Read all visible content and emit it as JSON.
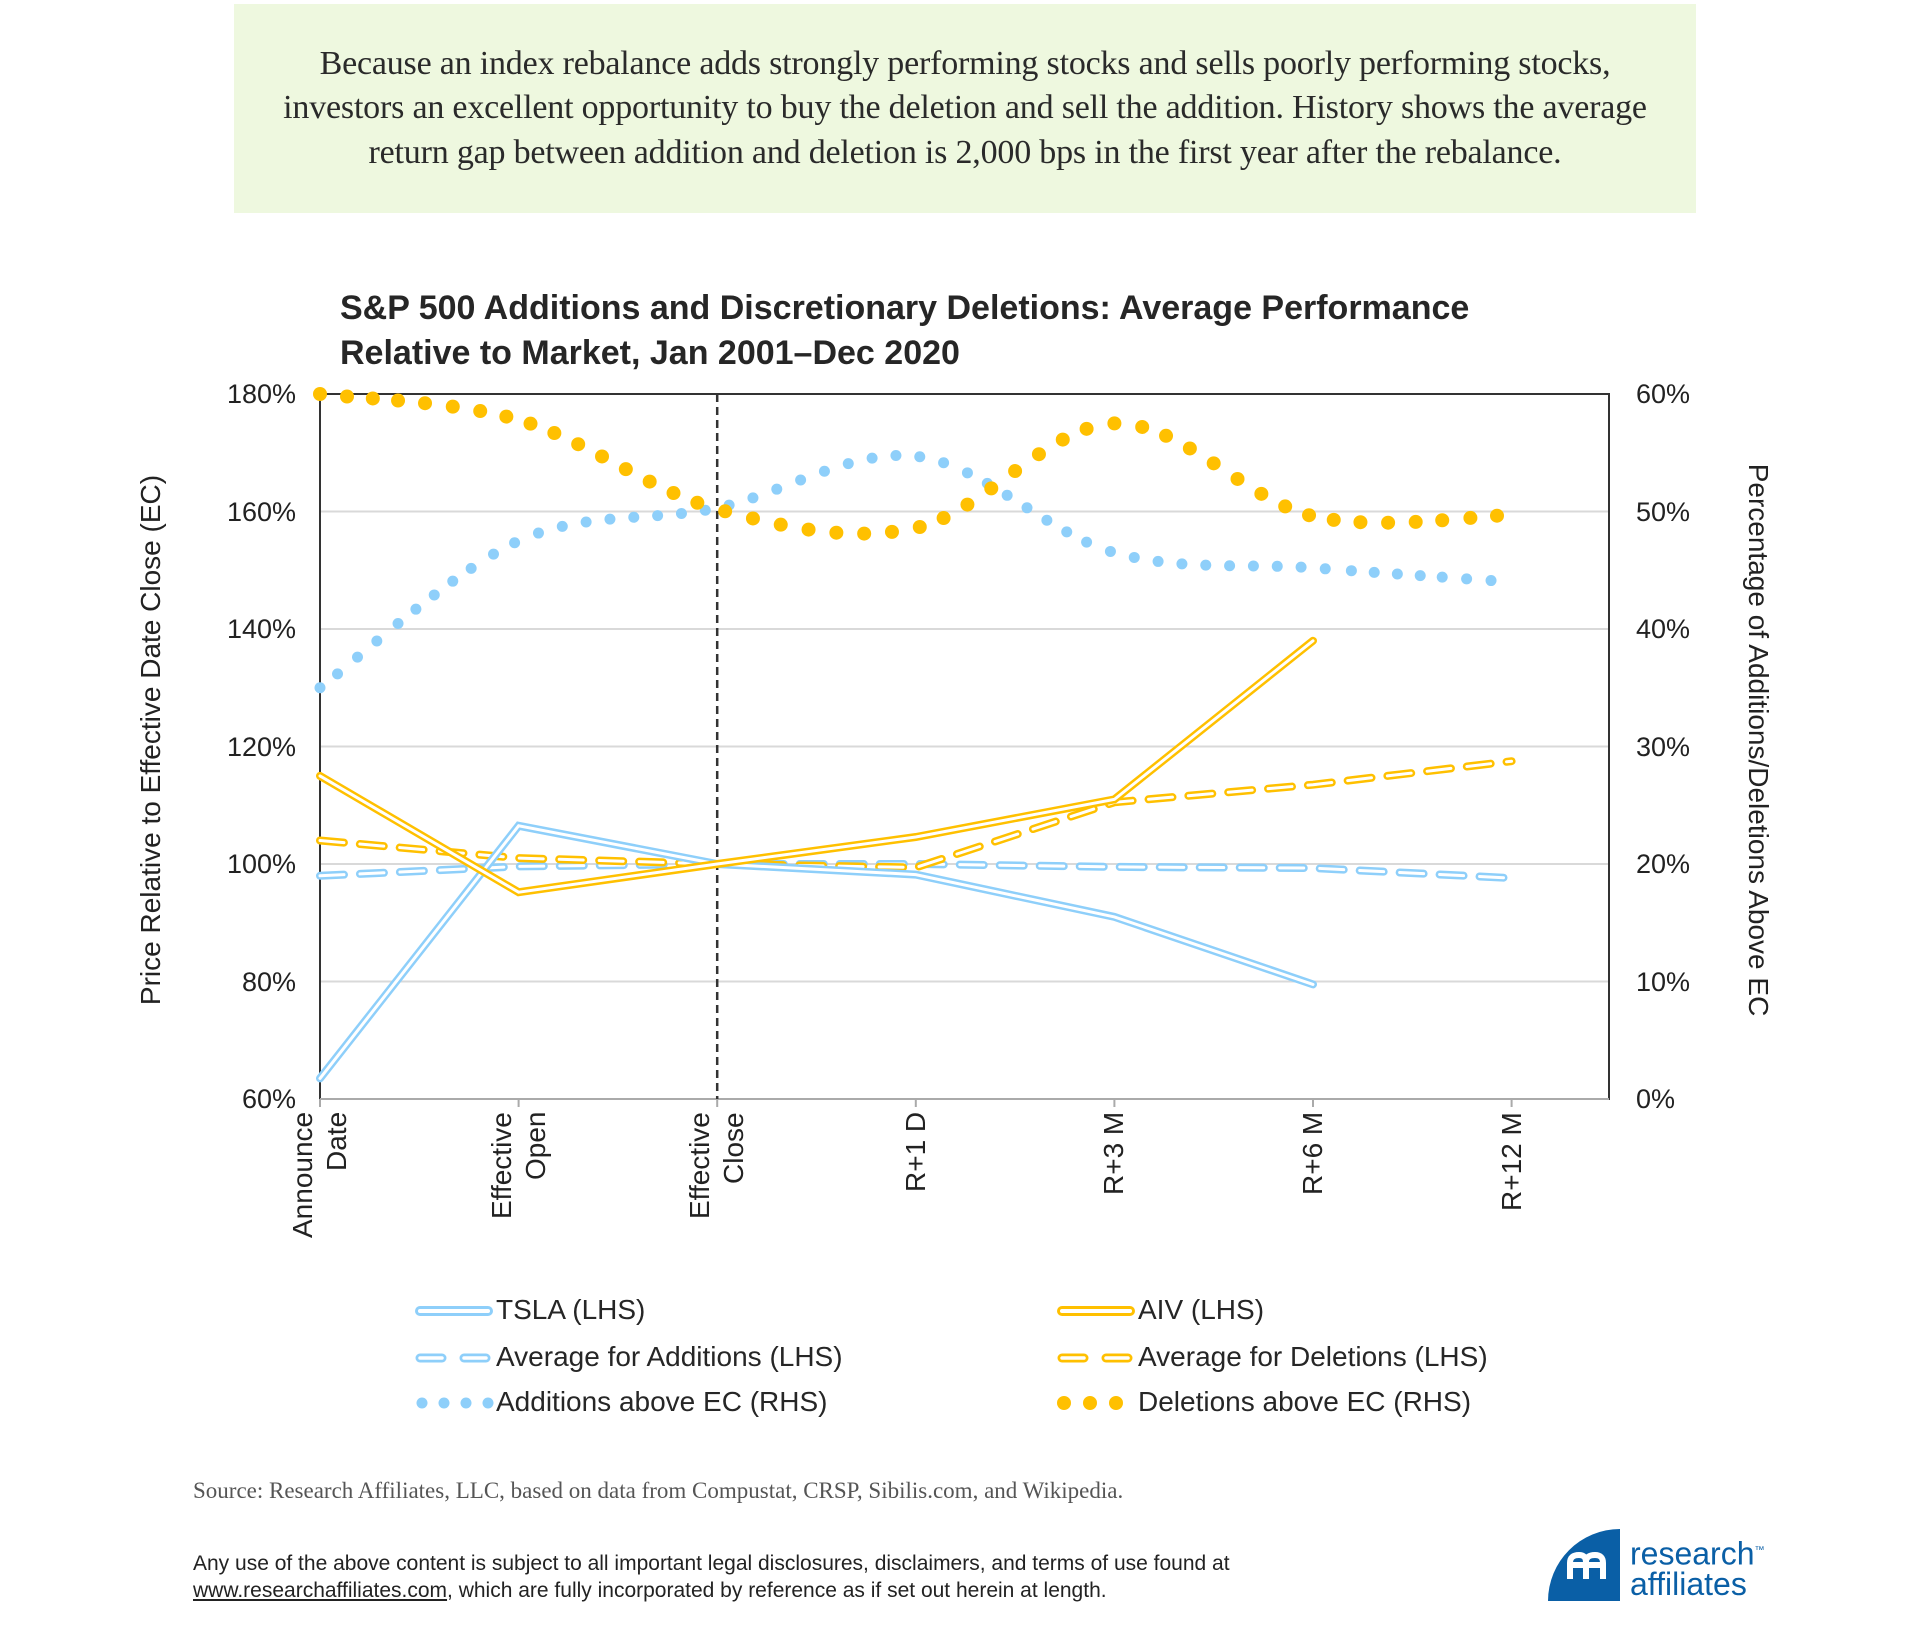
{
  "callout": {
    "text": "Because an index rebalance adds strongly performing stocks and sells poorly performing stocks, investors an excellent opportunity to buy the deletion and sell the addition. History shows the average return gap between addition and deletion is 2,000 bps in the first year after the rebalance."
  },
  "colors": {
    "blue": "#8ecffa",
    "gold": "#ffc000",
    "callout_bg": "#eef8df",
    "logo": "#0a5fa6"
  },
  "chart_data": {
    "type": "line",
    "title_line1": "S&P 500 Additions and Discretionary Deletions: Average Performance",
    "title_line2": "Relative to Market, Jan 2001–Dec 2020",
    "ylabel": "Price Relative to Effective Date Close (EC)",
    "y2label": "Percentage of Additions/Deletions Above EC",
    "ylim": [
      60,
      180
    ],
    "y2lim": [
      0,
      60
    ],
    "yticks": [
      "60%",
      "80%",
      "100%",
      "120%",
      "140%",
      "160%",
      "180%"
    ],
    "y2ticks": [
      "0%",
      "10%",
      "20%",
      "30%",
      "40%",
      "50%",
      "60%"
    ],
    "categories": [
      [
        "Announce",
        "Date"
      ],
      [
        "Effective",
        "Open"
      ],
      [
        "Effective",
        "Close"
      ],
      [
        "R+1 D"
      ],
      [
        "R+3 M"
      ],
      [
        "R+6 M"
      ],
      [
        "R+12 M"
      ]
    ],
    "vertical_marker": "Effective Close",
    "grid": true,
    "series": [
      {
        "name": "TSLA (LHS)",
        "axis": "left",
        "style": "double",
        "color": "blue",
        "values": [
          63.5,
          106.5,
          100,
          98.2,
          91,
          79.5,
          null
        ]
      },
      {
        "name": "AIV (LHS)",
        "axis": "left",
        "style": "double",
        "color": "gold",
        "values": [
          115,
          95.2,
          100,
          104.6,
          111,
          138,
          null
        ]
      },
      {
        "name": "Average for Additions (LHS)",
        "axis": "left",
        "style": "dashed",
        "color": "blue",
        "values": [
          98,
          99.6,
          100,
          100,
          99.5,
          99.3,
          97.6
        ]
      },
      {
        "name": "Average for Deletions (LHS)",
        "axis": "left",
        "style": "dashed",
        "color": "gold",
        "values": [
          104,
          101,
          100,
          99.4,
          110.5,
          113.5,
          117.5
        ]
      },
      {
        "name": "Additions above EC (RHS)",
        "axis": "right",
        "style": "dotted",
        "color": "blue",
        "values": [
          35,
          47.5,
          50.3,
          54.7,
          46.5,
          45.2,
          44
        ]
      },
      {
        "name": "Deletions above EC (RHS)",
        "axis": "right",
        "style": "dotted",
        "color": "gold",
        "values": [
          60,
          57.8,
          50.2,
          48.6,
          57.5,
          49.6,
          49.7
        ]
      }
    ],
    "legend_position": "bottom"
  },
  "source": "Source: Research Affiliates, LLC, based on data from Compustat, CRSP, Sibilis.com, and Wikipedia.",
  "disclaimer": {
    "line1": "Any use of the above content is subject to all important legal disclosures, disclaimers, and terms of use found at",
    "link": "www.researchaffiliates.com",
    "line2_rest": ", which are fully incorporated by reference as if set out herein at length."
  },
  "logo": {
    "line1": "research",
    "line2": "affiliates",
    "tm": "™"
  }
}
